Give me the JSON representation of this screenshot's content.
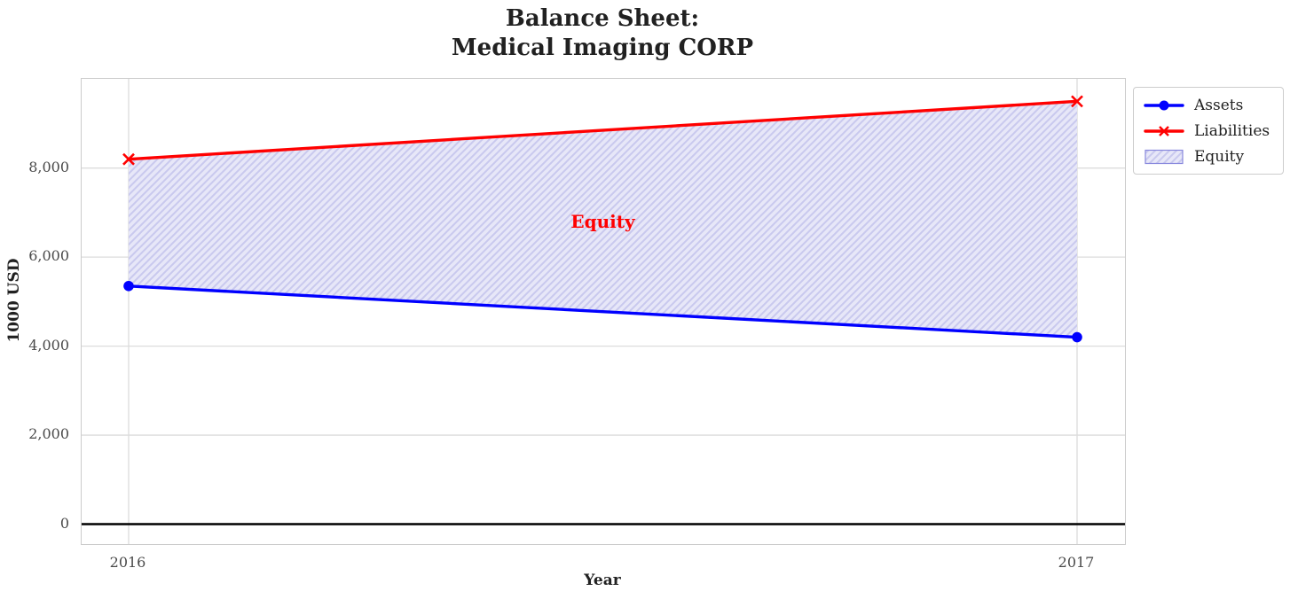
{
  "chart_data": {
    "type": "line",
    "title": "Balance Sheet:\nMedical Imaging CORP",
    "title_lines": [
      "Balance Sheet:",
      "Medical Imaging CORP"
    ],
    "xlabel": "Year",
    "ylabel": "1000 USD",
    "x": [
      2016,
      2017
    ],
    "x_tick_labels": [
      "2016",
      "2017"
    ],
    "y_tick_values": [
      0,
      2000,
      4000,
      6000,
      8000
    ],
    "y_tick_labels": [
      "0",
      "2,000",
      "4,000",
      "6,000",
      "8,000"
    ],
    "ylim": [
      -450,
      10050
    ],
    "grid": true,
    "zero_line": true,
    "series": [
      {
        "name": "Assets",
        "values": [
          5350,
          4200
        ],
        "color": "#0000ff",
        "marker": "circle"
      },
      {
        "name": "Liabilities",
        "values": [
          8200,
          9500
        ],
        "color": "#ff0000",
        "marker": "x"
      }
    ],
    "area": {
      "name": "Equity",
      "between": [
        "Assets",
        "Liabilities"
      ],
      "fill": "#e7e7f8",
      "hatch_color": "#c9c9ee",
      "edge_color": "#8888dd",
      "hatch": "//"
    },
    "annotation": {
      "text": "Equity",
      "color": "#ff0000",
      "x": 2016.5,
      "y": 6800
    },
    "legend": {
      "position": "upper-right-outside",
      "items": [
        "Assets",
        "Liabilities",
        "Equity"
      ]
    }
  },
  "colors": {
    "grid": "#dcdcdc",
    "plot_border": "#cccccc",
    "tick_text": "#4a4a4a",
    "title_text": "#212121"
  }
}
